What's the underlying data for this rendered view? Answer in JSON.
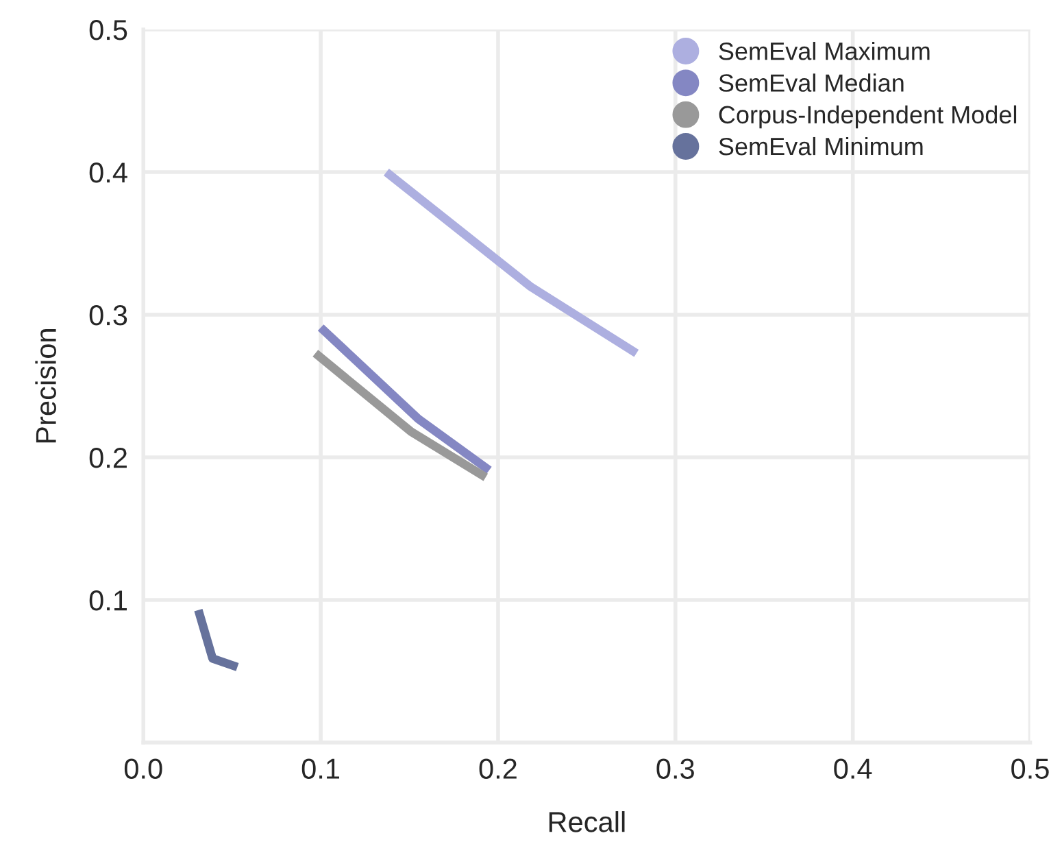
{
  "chart_data": {
    "type": "line",
    "xlabel": "Recall",
    "ylabel": "Precision",
    "xlim": [
      0,
      0.5
    ],
    "ylim": [
      0,
      0.5
    ],
    "xticks": [
      {
        "value": 0,
        "label": "0.0"
      },
      0.1,
      0.2,
      0.3,
      0.4,
      0.5
    ],
    "yticks": [
      {
        "value": 0,
        "label": null
      },
      0.1,
      0.2,
      0.3,
      0.4,
      0.5
    ],
    "grid": true,
    "legend": "top right",
    "marker": "none",
    "line_style": "solid",
    "series": [
      {
        "name": "SemEval Maximum",
        "color": "#adafe0",
        "x": [
          0.137,
          0.218,
          0.278
        ],
        "values": [
          0.4,
          0.32,
          0.273
        ]
      },
      {
        "name": "SemEval Median",
        "color": "#8487c3",
        "x": [
          0.1,
          0.155,
          0.195
        ],
        "values": [
          0.291,
          0.227,
          0.191
        ]
      },
      {
        "name": "Corpus-Independent Model",
        "color": "#999999",
        "x": [
          0.097,
          0.151,
          0.193
        ],
        "values": [
          0.273,
          0.218,
          0.186
        ]
      },
      {
        "name": "SemEval Minimum",
        "color": "#66729c",
        "x": [
          0.031,
          0.039,
          0.053
        ],
        "values": [
          0.093,
          0.059,
          0.053
        ]
      }
    ]
  }
}
